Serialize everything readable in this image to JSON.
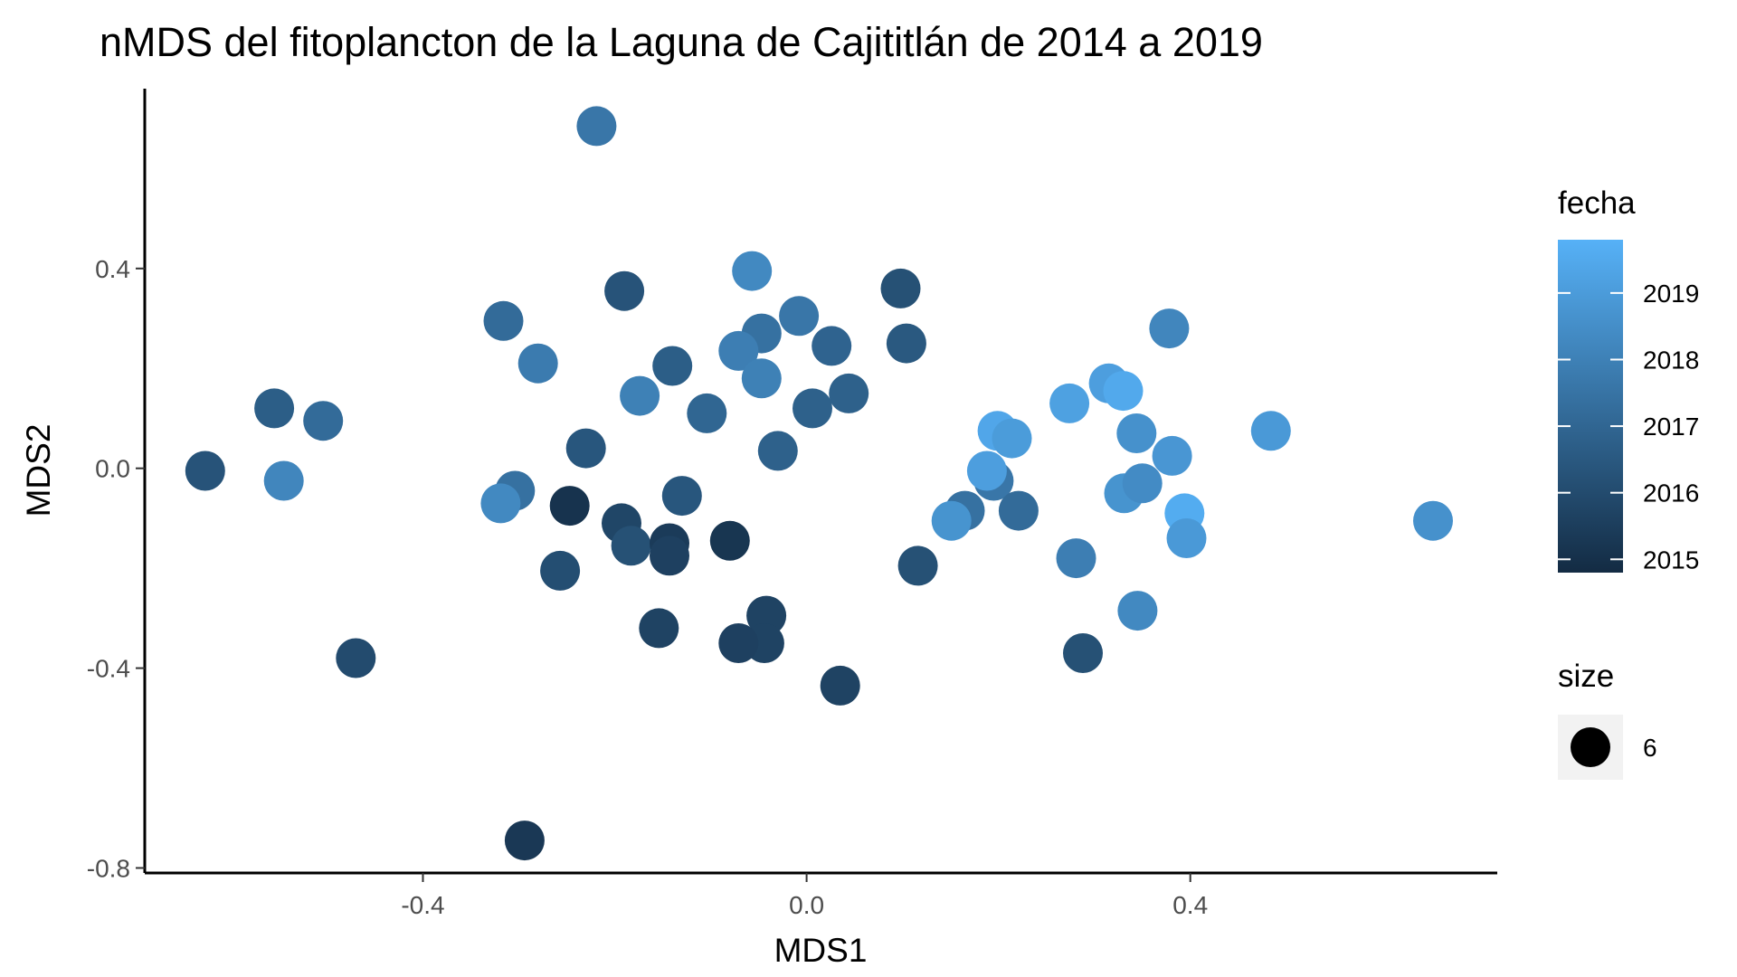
{
  "chart_data": {
    "type": "scatter",
    "title": "nMDS del fitoplancton de la Laguna de Cajititlán de 2014 a 2019",
    "xlabel": "MDS1",
    "ylabel": "MDS2",
    "xlim": [
      -0.69,
      0.72
    ],
    "ylim": [
      -0.81,
      0.76
    ],
    "xticks": [
      -0.4,
      0.0,
      0.4
    ],
    "xtick_labels": [
      "-0.4",
      "0.0",
      "0.4"
    ],
    "yticks": [
      -0.8,
      -0.4,
      0.0,
      0.4
    ],
    "ytick_labels": [
      "-0.8",
      "-0.4",
      "0.0",
      "0.4"
    ],
    "grid": false,
    "legend": {
      "placement": "right",
      "color_title": "fecha",
      "color_ticks": [
        2015,
        2016,
        2017,
        2018,
        2019
      ],
      "color_tick_labels": [
        "2015",
        "2016",
        "2017",
        "2018",
        "2019"
      ],
      "color_range": [
        2014.8,
        2019.8
      ],
      "color_low": "#132b43",
      "color_high": "#56b1f7",
      "size_title": "size",
      "size_label": "6"
    },
    "points": [
      {
        "x": -0.219,
        "y": 0.685,
        "fecha": 2017.6
      },
      {
        "x": -0.057,
        "y": 0.395,
        "fecha": 2018.3
      },
      {
        "x": -0.19,
        "y": 0.355,
        "fecha": 2016.3
      },
      {
        "x": 0.098,
        "y": 0.36,
        "fecha": 2016.2
      },
      {
        "x": -0.316,
        "y": 0.295,
        "fecha": 2017.2
      },
      {
        "x": -0.008,
        "y": 0.305,
        "fecha": 2017.6
      },
      {
        "x": -0.047,
        "y": 0.27,
        "fecha": 2017.4
      },
      {
        "x": -0.071,
        "y": 0.235,
        "fecha": 2017.9
      },
      {
        "x": 0.026,
        "y": 0.245,
        "fecha": 2016.9
      },
      {
        "x": 0.104,
        "y": 0.25,
        "fecha": 2016.5
      },
      {
        "x": -0.28,
        "y": 0.21,
        "fecha": 2017.8
      },
      {
        "x": -0.14,
        "y": 0.205,
        "fecha": 2016.7
      },
      {
        "x": -0.047,
        "y": 0.18,
        "fecha": 2018.0
      },
      {
        "x": -0.174,
        "y": 0.145,
        "fecha": 2018.0
      },
      {
        "x": 0.044,
        "y": 0.15,
        "fecha": 2016.8
      },
      {
        "x": 0.006,
        "y": 0.12,
        "fecha": 2016.8
      },
      {
        "x": -0.104,
        "y": 0.11,
        "fecha": 2017.0
      },
      {
        "x": -0.555,
        "y": 0.12,
        "fecha": 2016.7
      },
      {
        "x": -0.504,
        "y": 0.095,
        "fecha": 2017.2
      },
      {
        "x": -0.23,
        "y": 0.04,
        "fecha": 2016.4
      },
      {
        "x": -0.03,
        "y": 0.035,
        "fecha": 2016.8
      },
      {
        "x": -0.627,
        "y": -0.005,
        "fecha": 2016.3
      },
      {
        "x": -0.545,
        "y": -0.025,
        "fecha": 2018.2
      },
      {
        "x": -0.304,
        "y": -0.045,
        "fecha": 2017.4
      },
      {
        "x": -0.319,
        "y": -0.07,
        "fecha": 2018.3
      },
      {
        "x": -0.247,
        "y": -0.075,
        "fecha": 2015.1
      },
      {
        "x": -0.13,
        "y": -0.055,
        "fecha": 2016.4
      },
      {
        "x": -0.193,
        "y": -0.11,
        "fecha": 2015.8
      },
      {
        "x": -0.183,
        "y": -0.155,
        "fecha": 2016.2
      },
      {
        "x": -0.143,
        "y": -0.15,
        "fecha": 2015.4
      },
      {
        "x": -0.143,
        "y": -0.175,
        "fecha": 2015.6
      },
      {
        "x": -0.08,
        "y": -0.145,
        "fecha": 2015.2
      },
      {
        "x": -0.257,
        "y": -0.205,
        "fecha": 2016.1
      },
      {
        "x": -0.154,
        "y": -0.32,
        "fecha": 2015.7
      },
      {
        "x": -0.042,
        "y": -0.295,
        "fecha": 2015.7
      },
      {
        "x": -0.044,
        "y": -0.35,
        "fecha": 2015.7
      },
      {
        "x": -0.071,
        "y": -0.35,
        "fecha": 2015.6
      },
      {
        "x": 0.035,
        "y": -0.435,
        "fecha": 2015.7
      },
      {
        "x": -0.47,
        "y": -0.38,
        "fecha": 2016.0
      },
      {
        "x": -0.294,
        "y": -0.745,
        "fecha": 2015.3
      },
      {
        "x": 0.116,
        "y": -0.195,
        "fecha": 2016.2
      },
      {
        "x": 0.165,
        "y": -0.085,
        "fecha": 2017.4
      },
      {
        "x": 0.151,
        "y": -0.105,
        "fecha": 2018.7
      },
      {
        "x": 0.195,
        "y": -0.025,
        "fecha": 2017.6
      },
      {
        "x": 0.199,
        "y": 0.075,
        "fecha": 2019.4
      },
      {
        "x": 0.214,
        "y": 0.06,
        "fecha": 2019.0
      },
      {
        "x": 0.188,
        "y": -0.005,
        "fecha": 2019.1
      },
      {
        "x": 0.221,
        "y": -0.085,
        "fecha": 2017.2
      },
      {
        "x": 0.274,
        "y": 0.13,
        "fecha": 2019.2
      },
      {
        "x": 0.281,
        "y": -0.18,
        "fecha": 2017.9
      },
      {
        "x": 0.288,
        "y": -0.37,
        "fecha": 2016.2
      },
      {
        "x": 0.315,
        "y": 0.17,
        "fecha": 2019.1
      },
      {
        "x": 0.33,
        "y": 0.155,
        "fecha": 2019.5
      },
      {
        "x": 0.344,
        "y": 0.07,
        "fecha": 2018.6
      },
      {
        "x": 0.331,
        "y": -0.05,
        "fecha": 2018.7
      },
      {
        "x": 0.35,
        "y": -0.03,
        "fecha": 2018.4
      },
      {
        "x": 0.345,
        "y": -0.285,
        "fecha": 2018.3
      },
      {
        "x": 0.378,
        "y": 0.28,
        "fecha": 2018.2
      },
      {
        "x": 0.381,
        "y": 0.025,
        "fecha": 2018.8
      },
      {
        "x": 0.394,
        "y": -0.09,
        "fecha": 2019.6
      },
      {
        "x": 0.396,
        "y": -0.14,
        "fecha": 2018.9
      },
      {
        "x": 0.484,
        "y": 0.075,
        "fecha": 2018.9
      },
      {
        "x": 0.653,
        "y": -0.105,
        "fecha": 2018.6
      }
    ]
  }
}
